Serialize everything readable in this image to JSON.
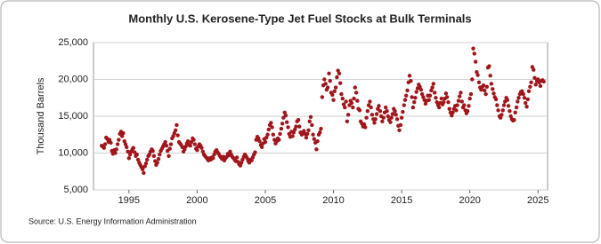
{
  "chart_data": {
    "type": "scatter",
    "title": "Monthly U.S. Kerosene-Type Jet Fuel Stocks at Bulk Terminals",
    "y_label": "Thousand Barrels",
    "source": "Source: U.S. Energy Information Administration",
    "color": "#a0161b",
    "grid": true,
    "xlim": [
      1992.4,
      2025.7
    ],
    "xticks": [
      1995,
      2000,
      2005,
      2010,
      2015,
      2020,
      2025
    ],
    "ylim": [
      5000,
      25000
    ],
    "yticks": [
      {
        "value": 5000,
        "label": "5,000"
      },
      {
        "value": 10000,
        "label": "10,000"
      },
      {
        "value": 15000,
        "label": "15,000"
      },
      {
        "value": 20000,
        "label": "20,000"
      },
      {
        "value": 25000,
        "label": "25,000"
      }
    ],
    "x": [
      1993.0,
      1993.08,
      1993.17,
      1993.25,
      1993.33,
      1993.42,
      1993.5,
      1993.58,
      1993.67,
      1993.75,
      1993.83,
      1993.92,
      1994.0,
      1994.08,
      1994.17,
      1994.25,
      1994.33,
      1994.42,
      1994.5,
      1994.58,
      1994.67,
      1994.75,
      1994.83,
      1994.92,
      1995.0,
      1995.08,
      1995.17,
      1995.25,
      1995.33,
      1995.42,
      1995.5,
      1995.58,
      1995.67,
      1995.75,
      1995.83,
      1995.92,
      1996.0,
      1996.08,
      1996.17,
      1996.25,
      1996.33,
      1996.42,
      1996.5,
      1996.58,
      1996.67,
      1996.75,
      1996.83,
      1996.92,
      1997.0,
      1997.08,
      1997.17,
      1997.25,
      1997.33,
      1997.42,
      1997.5,
      1997.58,
      1997.67,
      1997.75,
      1997.83,
      1997.92,
      1998.0,
      1998.08,
      1998.17,
      1998.25,
      1998.33,
      1998.42,
      1998.5,
      1998.58,
      1998.67,
      1998.75,
      1998.83,
      1998.92,
      1999.0,
      1999.08,
      1999.17,
      1999.25,
      1999.33,
      1999.42,
      1999.5,
      1999.58,
      1999.67,
      1999.75,
      1999.83,
      1999.92,
      2000.0,
      2000.08,
      2000.17,
      2000.25,
      2000.33,
      2000.42,
      2000.5,
      2000.58,
      2000.67,
      2000.75,
      2000.83,
      2000.92,
      2001.0,
      2001.08,
      2001.17,
      2001.25,
      2001.33,
      2001.42,
      2001.5,
      2001.58,
      2001.67,
      2001.75,
      2001.83,
      2001.92,
      2002.0,
      2002.08,
      2002.17,
      2002.25,
      2002.33,
      2002.42,
      2002.5,
      2002.58,
      2002.67,
      2002.75,
      2002.83,
      2002.92,
      2003.0,
      2003.08,
      2003.17,
      2003.25,
      2003.33,
      2003.42,
      2003.5,
      2003.58,
      2003.67,
      2003.75,
      2003.83,
      2003.92,
      2004.0,
      2004.08,
      2004.17,
      2004.25,
      2004.33,
      2004.42,
      2004.5,
      2004.58,
      2004.67,
      2004.75,
      2004.83,
      2004.92,
      2005.0,
      2005.08,
      2005.17,
      2005.25,
      2005.33,
      2005.42,
      2005.5,
      2005.58,
      2005.67,
      2005.75,
      2005.83,
      2005.92,
      2006.0,
      2006.08,
      2006.17,
      2006.25,
      2006.33,
      2006.42,
      2006.5,
      2006.58,
      2006.67,
      2006.75,
      2006.83,
      2006.92,
      2007.0,
      2007.08,
      2007.17,
      2007.25,
      2007.33,
      2007.42,
      2007.5,
      2007.58,
      2007.67,
      2007.75,
      2007.83,
      2007.92,
      2008.0,
      2008.08,
      2008.17,
      2008.25,
      2008.33,
      2008.42,
      2008.5,
      2008.58,
      2008.67,
      2008.75,
      2008.83,
      2008.92,
      2009.0,
      2009.08,
      2009.17,
      2009.25,
      2009.33,
      2009.42,
      2009.5,
      2009.58,
      2009.67,
      2009.75,
      2009.83,
      2009.92,
      2010.0,
      2010.08,
      2010.17,
      2010.25,
      2010.33,
      2010.42,
      2010.5,
      2010.58,
      2010.67,
      2010.75,
      2010.83,
      2010.92,
      2011.0,
      2011.08,
      2011.17,
      2011.25,
      2011.33,
      2011.42,
      2011.5,
      2011.58,
      2011.67,
      2011.75,
      2011.83,
      2011.92,
      2012.0,
      2012.08,
      2012.17,
      2012.25,
      2012.33,
      2012.42,
      2012.5,
      2012.58,
      2012.67,
      2012.75,
      2012.83,
      2012.92,
      2013.0,
      2013.08,
      2013.17,
      2013.25,
      2013.33,
      2013.42,
      2013.5,
      2013.58,
      2013.67,
      2013.75,
      2013.83,
      2013.92,
      2014.0,
      2014.08,
      2014.17,
      2014.25,
      2014.33,
      2014.42,
      2014.5,
      2014.58,
      2014.67,
      2014.75,
      2014.83,
      2014.92,
      2015.0,
      2015.08,
      2015.17,
      2015.25,
      2015.33,
      2015.42,
      2015.5,
      2015.58,
      2015.67,
      2015.75,
      2015.83,
      2015.92,
      2016.0,
      2016.08,
      2016.17,
      2016.25,
      2016.33,
      2016.42,
      2016.5,
      2016.58,
      2016.67,
      2016.75,
      2016.83,
      2016.92,
      2017.0,
      2017.08,
      2017.17,
      2017.25,
      2017.33,
      2017.42,
      2017.5,
      2017.58,
      2017.67,
      2017.75,
      2017.83,
      2017.92,
      2018.0,
      2018.08,
      2018.17,
      2018.25,
      2018.33,
      2018.42,
      2018.5,
      2018.58,
      2018.67,
      2018.75,
      2018.83,
      2018.92,
      2019.0,
      2019.08,
      2019.17,
      2019.25,
      2019.33,
      2019.42,
      2019.5,
      2019.58,
      2019.67,
      2019.75,
      2019.83,
      2019.92,
      2020.0,
      2020.08,
      2020.17,
      2020.25,
      2020.33,
      2020.42,
      2020.5,
      2020.58,
      2020.67,
      2020.75,
      2020.83,
      2020.92,
      2021.0,
      2021.08,
      2021.17,
      2021.25,
      2021.33,
      2021.42,
      2021.5,
      2021.58,
      2021.67,
      2021.75,
      2021.83,
      2021.92,
      2022.0,
      2022.08,
      2022.17,
      2022.25,
      2022.33,
      2022.42,
      2022.5,
      2022.58,
      2022.67,
      2022.75,
      2022.83,
      2022.92,
      2023.0,
      2023.08,
      2023.17,
      2023.25,
      2023.33,
      2023.42,
      2023.5,
      2023.58,
      2023.67,
      2023.75,
      2023.83,
      2023.92,
      2024.0,
      2024.08,
      2024.17,
      2024.25,
      2024.33,
      2024.42,
      2024.5,
      2024.58,
      2024.67,
      2024.75,
      2024.83,
      2024.92,
      2025.0,
      2025.08,
      2025.17,
      2025.25,
      2025.33,
      2025.42
    ],
    "values": [
      11000,
      10900,
      10700,
      11200,
      12100,
      11900,
      11500,
      11800,
      11400,
      10300,
      9900,
      10400,
      10000,
      10500,
      11200,
      11800,
      12600,
      12900,
      12300,
      12700,
      11600,
      11200,
      10800,
      10200,
      9300,
      9800,
      10200,
      10500,
      10700,
      10100,
      9600,
      9800,
      9100,
      8700,
      8400,
      8100,
      7800,
      7300,
      8200,
      8600,
      9100,
      9600,
      9800,
      10200,
      10500,
      10300,
      9600,
      8900,
      8400,
      8700,
      9200,
      9800,
      10300,
      10600,
      10900,
      11200,
      11500,
      11000,
      10300,
      9600,
      10600,
      11200,
      12000,
      12300,
      12700,
      13100,
      13800,
      12400,
      11500,
      11300,
      11100,
      10800,
      10200,
      10500,
      10900,
      11300,
      11600,
      11100,
      11000,
      11500,
      12000,
      11800,
      11200,
      10600,
      10400,
      10900,
      11200,
      11000,
      10700,
      10200,
      9800,
      9600,
      9400,
      9200,
      9000,
      9300,
      9100,
      9400,
      9300,
      9800,
      10200,
      10400,
      10100,
      9900,
      9600,
      9400,
      9200,
      9500,
      9000,
      9300,
      9500,
      9900,
      9700,
      10200,
      9800,
      9500,
      9300,
      9100,
      8900,
      9400,
      8800,
      8500,
      8300,
      8700,
      9100,
      9500,
      9800,
      9600,
      9300,
      8900,
      8700,
      9100,
      9000,
      9400,
      9800,
      10100,
      11800,
      12200,
      12000,
      11600,
      11100,
      10800,
      11300,
      11900,
      11500,
      12100,
      12500,
      13200,
      13800,
      14100,
      13500,
      12500,
      11800,
      11300,
      11600,
      12000,
      11800,
      12600,
      13300,
      14000,
      14800,
      15500,
      15100,
      14200,
      13500,
      12600,
      12200,
      12900,
      12300,
      12800,
      13200,
      13600,
      14300,
      14500,
      13600,
      12800,
      12500,
      12700,
      13000,
      12600,
      12100,
      12600,
      13100,
      14300,
      14900,
      13800,
      12500,
      11900,
      11400,
      10500,
      11600,
      12500,
      12800,
      13300,
      17600,
      19200,
      20000,
      19400,
      18600,
      18900,
      20800,
      19800,
      18200,
      17900,
      17200,
      18400,
      18900,
      20300,
      21200,
      20800,
      19500,
      18000,
      17400,
      16600,
      16200,
      17000,
      14300,
      15200,
      16500,
      17100,
      16800,
      16200,
      17400,
      18900,
      18200,
      17100,
      16000,
      15800,
      14300,
      14000,
      13600,
      13900,
      13500,
      14800,
      15700,
      16500,
      17000,
      16200,
      15200,
      14600,
      14100,
      14600,
      15300,
      16000,
      16400,
      15700,
      15000,
      14300,
      14800,
      15500,
      16200,
      15700,
      15000,
      14500,
      14200,
      14800,
      15300,
      16000,
      15700,
      15200,
      14600,
      13700,
      13100,
      13800,
      14800,
      15600,
      16500,
      17200,
      17800,
      18500,
      19600,
      20500,
      19800,
      17600,
      16200,
      16900,
      17500,
      18300,
      18800,
      19300,
      19000,
      18600,
      18000,
      17600,
      17200,
      16700,
      17100,
      17800,
      17200,
      17800,
      18500,
      18900,
      19400,
      18200,
      17500,
      16900,
      16500,
      16200,
      16800,
      17400,
      16600,
      16900,
      17400,
      18100,
      17600,
      16900,
      16000,
      15500,
      15100,
      15500,
      16000,
      16400,
      15800,
      16500,
      17100,
      17700,
      18200,
      17000,
      16200,
      16500,
      15800,
      15400,
      15700,
      16400,
      17400,
      18000,
      20000,
      24200,
      23500,
      22400,
      21000,
      20600,
      19600,
      18900,
      18600,
      19000,
      19200,
      18500,
      18000,
      19000,
      21600,
      21800,
      20500,
      19400,
      18700,
      18100,
      17600,
      17300,
      16500,
      15800,
      15000,
      14800,
      15200,
      15800,
      16500,
      17000,
      17500,
      17200,
      16400,
      15700,
      15000,
      14600,
      14400,
      14500,
      15500,
      16200,
      17000,
      17500,
      18000,
      18300,
      18400,
      18000,
      17500,
      16800,
      16300,
      17300,
      18400,
      19000,
      19600,
      21700,
      21300,
      20200,
      19300,
      19800,
      20000,
      19600,
      19100,
      19800,
      19900,
      19700
    ]
  }
}
